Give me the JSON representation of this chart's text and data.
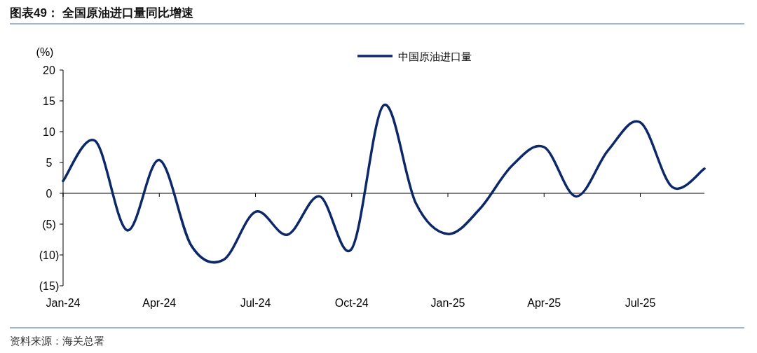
{
  "chart_data": {
    "type": "line",
    "title": "图表49：  全国原油进口量同比增速",
    "ylabel": "(%)",
    "x": [
      "2024-01",
      "2024-02",
      "2024-03",
      "2024-04",
      "2024-05",
      "2024-06",
      "2024-07",
      "2024-08",
      "2024-09",
      "2024-10",
      "2024-11",
      "2024-12",
      "2025-01",
      "2025-02",
      "2025-03",
      "2025-04",
      "2025-05",
      "2025-06",
      "2025-07",
      "2025-08",
      "2025-09"
    ],
    "series": [
      {
        "name": "中国原油进口量",
        "color": "#0c2868",
        "values": [
          2.0,
          8.5,
          -6.0,
          5.4,
          -8.5,
          -10.8,
          -3.0,
          -6.7,
          -0.5,
          -9.0,
          14.3,
          -1.6,
          -6.6,
          -2.5,
          4.5,
          7.5,
          -0.5,
          7.0,
          11.5,
          1.0,
          4.0
        ]
      }
    ],
    "xlim": [
      "2024-01",
      "2025-09"
    ],
    "xticks": [
      {
        "value": "2024-01",
        "label": "Jan-24"
      },
      {
        "value": "2024-04",
        "label": "Apr-24"
      },
      {
        "value": "2024-07",
        "label": "Jul-24"
      },
      {
        "value": "2024-10",
        "label": "Oct-24"
      },
      {
        "value": "2025-01",
        "label": "Jan-25"
      },
      {
        "value": "2025-04",
        "label": "Apr-25"
      },
      {
        "value": "2025-07",
        "label": "Jul-25"
      }
    ],
    "ylim": [
      -15,
      20
    ],
    "yticks": [
      {
        "value": 20,
        "label": "20"
      },
      {
        "value": 15,
        "label": "15"
      },
      {
        "value": 10,
        "label": "10"
      },
      {
        "value": 5,
        "label": "5"
      },
      {
        "value": 0,
        "label": "0"
      },
      {
        "value": -5,
        "label": "(5)"
      },
      {
        "value": -10,
        "label": "(10)"
      },
      {
        "value": -15,
        "label": "(15)"
      }
    ],
    "legend": "top",
    "marker": "none",
    "line_style": "solid",
    "annotations": [
      "资料来源：海关总署"
    ]
  }
}
